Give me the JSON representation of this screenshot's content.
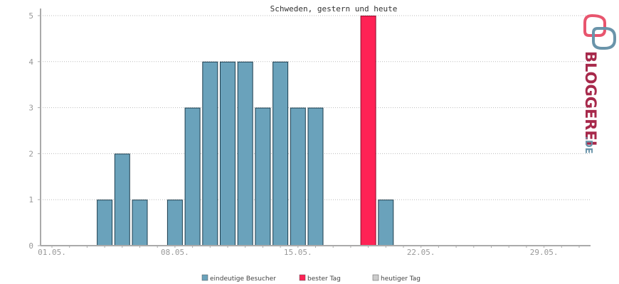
{
  "chart_data": {
    "type": "bar",
    "title": "Schweden, gestern und heute",
    "xlabel": "",
    "ylabel": "",
    "ylim": [
      0,
      5
    ],
    "yticks": [
      "0",
      "1",
      "2",
      "3",
      "4",
      "5"
    ],
    "xticks": [
      "01.05.",
      "08.05.",
      "15.05.",
      "22.05.",
      "29.05."
    ],
    "days": 31,
    "grid": true,
    "legend_position": "bottom",
    "series": [
      {
        "name": "eindeutige Besucher",
        "color": "#6aa2bb",
        "values": [
          0,
          0,
          0,
          1,
          2,
          1,
          0,
          1,
          3,
          4,
          4,
          4,
          3,
          4,
          3,
          3,
          0,
          0,
          0,
          1,
          0,
          0,
          0,
          0,
          0,
          0,
          0,
          0,
          0,
          0,
          0
        ]
      },
      {
        "name": "bester Tag",
        "color": "#ff2255",
        "best_day_index": 18,
        "value": 5
      },
      {
        "name": "heutiger Tag",
        "color": "#cccccc"
      }
    ]
  },
  "logo": {
    "text": "BLOGGEREI",
    "suffix": ".DE"
  }
}
